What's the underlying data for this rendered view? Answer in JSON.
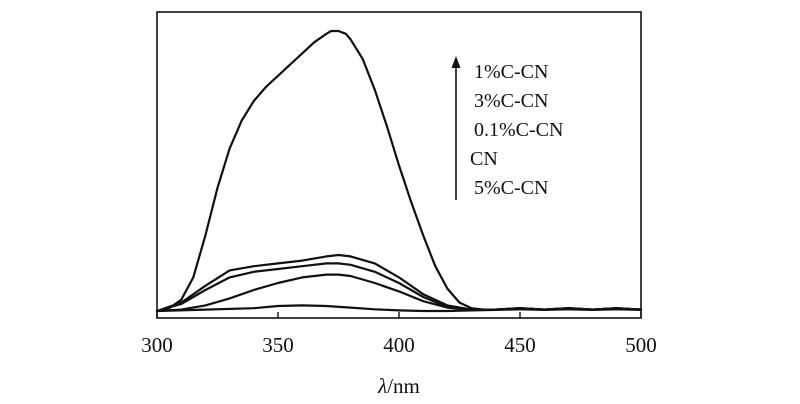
{
  "chart_data": {
    "type": "line",
    "title": "",
    "xlabel_italic": "λ",
    "xlabel_rest": "/nm",
    "ylabel": "",
    "xlim": [
      300,
      500
    ],
    "ylim": [
      0,
      1
    ],
    "x_ticks": [
      300,
      350,
      400,
      450,
      500
    ],
    "y_ticks_shown": false,
    "grid": false,
    "line_color": "#111111",
    "legend_arrow": "up",
    "legend_placement": "top-right",
    "legend_entries": [
      "1%C-CN",
      "3%C-CN",
      "0.1%C-CN",
      "CN",
      "5%C-CN"
    ],
    "series": [
      {
        "name": "1%C-CN",
        "x": [
          300,
          305,
          310,
          315,
          320,
          325,
          330,
          335,
          340,
          345,
          350,
          355,
          360,
          365,
          370,
          372,
          375,
          378,
          380,
          385,
          390,
          395,
          400,
          405,
          410,
          415,
          420,
          425,
          430,
          435,
          440,
          450,
          460,
          470,
          480,
          490,
          500
        ],
        "y": [
          0.0,
          0.01,
          0.04,
          0.12,
          0.27,
          0.44,
          0.58,
          0.68,
          0.75,
          0.8,
          0.84,
          0.88,
          0.92,
          0.96,
          0.99,
          1.0,
          1.0,
          0.99,
          0.97,
          0.9,
          0.79,
          0.66,
          0.52,
          0.39,
          0.27,
          0.16,
          0.08,
          0.03,
          0.01,
          0.005,
          0.005,
          0.01,
          0.005,
          0.01,
          0.005,
          0.01,
          0.005
        ]
      },
      {
        "name": "3%C-CN",
        "x": [
          300,
          310,
          320,
          330,
          340,
          350,
          360,
          370,
          375,
          380,
          390,
          400,
          410,
          420,
          430,
          440,
          450,
          460,
          470,
          480,
          490,
          500
        ],
        "y": [
          0.0,
          0.03,
          0.09,
          0.145,
          0.16,
          0.17,
          0.18,
          0.195,
          0.2,
          0.195,
          0.17,
          0.12,
          0.06,
          0.02,
          0.005,
          0.005,
          0.01,
          0.005,
          0.01,
          0.005,
          0.01,
          0.005
        ]
      },
      {
        "name": "0.1%C-CN",
        "x": [
          300,
          310,
          320,
          330,
          340,
          350,
          360,
          370,
          375,
          380,
          390,
          400,
          410,
          420,
          430,
          440,
          450,
          460,
          470,
          480,
          490,
          500
        ],
        "y": [
          0.0,
          0.025,
          0.075,
          0.12,
          0.14,
          0.15,
          0.16,
          0.17,
          0.17,
          0.165,
          0.14,
          0.1,
          0.05,
          0.015,
          0.005,
          0.005,
          0.01,
          0.005,
          0.01,
          0.005,
          0.01,
          0.005
        ]
      },
      {
        "name": "CN",
        "x": [
          300,
          310,
          320,
          330,
          340,
          350,
          360,
          370,
          375,
          380,
          390,
          400,
          410,
          420,
          430,
          440,
          450,
          460,
          470,
          480,
          490,
          500
        ],
        "y": [
          0.0,
          0.005,
          0.02,
          0.045,
          0.075,
          0.1,
          0.12,
          0.13,
          0.13,
          0.125,
          0.1,
          0.07,
          0.035,
          0.012,
          0.005,
          0.005,
          0.01,
          0.005,
          0.01,
          0.005,
          0.01,
          0.005
        ]
      },
      {
        "name": "5%C-CN",
        "x": [
          300,
          320,
          340,
          350,
          360,
          370,
          380,
          390,
          400,
          410,
          420,
          430,
          440,
          450,
          460,
          470,
          480,
          490,
          500
        ],
        "y": [
          0.0,
          0.005,
          0.01,
          0.018,
          0.02,
          0.018,
          0.012,
          0.006,
          0.002,
          0.0,
          0.0,
          0.002,
          0.004,
          0.006,
          0.004,
          0.006,
          0.004,
          0.006,
          0.004
        ]
      }
    ]
  }
}
